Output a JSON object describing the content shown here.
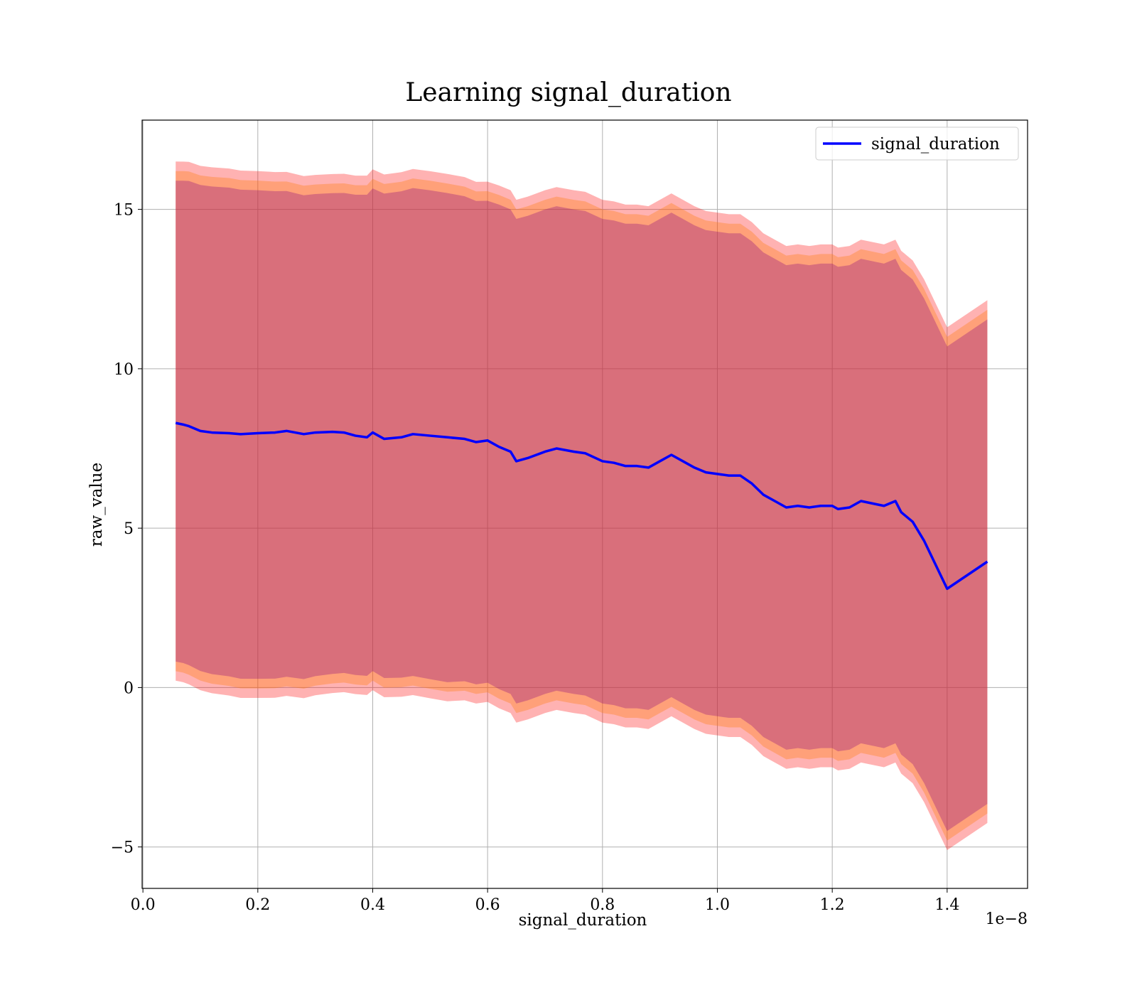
{
  "chart_data": {
    "type": "line",
    "title": "Learning signal_duration",
    "xlabel": "signal_duration",
    "ylabel": "raw_value",
    "x_offset_label": "1e−8",
    "xlim": [
      -0.0014,
      1.54
    ],
    "ylim": [
      -6.3,
      17.8
    ],
    "x_ticks": [
      0.0,
      0.2,
      0.4,
      0.6,
      0.8,
      1.0,
      1.2,
      1.4
    ],
    "x_tick_labels": [
      "0.0",
      "0.2",
      "0.4",
      "0.6",
      "0.8",
      "1.0",
      "1.2",
      "1.4"
    ],
    "y_ticks": [
      -5,
      0,
      5,
      10,
      15
    ],
    "y_tick_labels": [
      "−5",
      "0",
      "5",
      "10",
      "15"
    ],
    "grid": true,
    "legend": {
      "position": "top-right",
      "entries": [
        "signal_duration"
      ]
    },
    "colors": {
      "line": "#0000ff",
      "band_outer": "#ff0000",
      "band_middle": "#ff7f0e",
      "band_inner": "#800080"
    },
    "series": [
      {
        "name": "signal_duration",
        "x": [
          0.057,
          0.07,
          0.08,
          0.1,
          0.12,
          0.15,
          0.17,
          0.2,
          0.23,
          0.25,
          0.28,
          0.3,
          0.33,
          0.35,
          0.37,
          0.39,
          0.4,
          0.42,
          0.45,
          0.47,
          0.5,
          0.53,
          0.56,
          0.58,
          0.6,
          0.62,
          0.64,
          0.65,
          0.67,
          0.7,
          0.72,
          0.75,
          0.77,
          0.8,
          0.82,
          0.84,
          0.86,
          0.88,
          0.9,
          0.92,
          0.94,
          0.96,
          0.98,
          1.0,
          1.02,
          1.04,
          1.06,
          1.08,
          1.1,
          1.12,
          1.14,
          1.16,
          1.18,
          1.2,
          1.21,
          1.23,
          1.25,
          1.29,
          1.31,
          1.32,
          1.34,
          1.36,
          1.4,
          1.47
        ],
        "values": [
          8.3,
          8.25,
          8.2,
          8.05,
          8.0,
          7.98,
          7.95,
          7.98,
          8.0,
          8.05,
          7.95,
          8.0,
          8.02,
          8.0,
          7.9,
          7.85,
          8.0,
          7.8,
          7.85,
          7.95,
          7.9,
          7.85,
          7.8,
          7.7,
          7.75,
          7.55,
          7.4,
          7.1,
          7.2,
          7.4,
          7.5,
          7.4,
          7.35,
          7.1,
          7.05,
          6.95,
          6.95,
          6.9,
          7.1,
          7.3,
          7.1,
          6.9,
          6.75,
          6.7,
          6.65,
          6.65,
          6.4,
          6.05,
          5.85,
          5.65,
          5.7,
          5.65,
          5.7,
          5.7,
          5.6,
          5.65,
          5.85,
          5.7,
          5.85,
          5.5,
          5.2,
          4.6,
          3.1,
          3.95
        ],
        "band_halfwidths": [
          8.2,
          7.9,
          7.6
        ],
        "band_labels": [
          "outer",
          "middle",
          "inner"
        ]
      }
    ]
  }
}
